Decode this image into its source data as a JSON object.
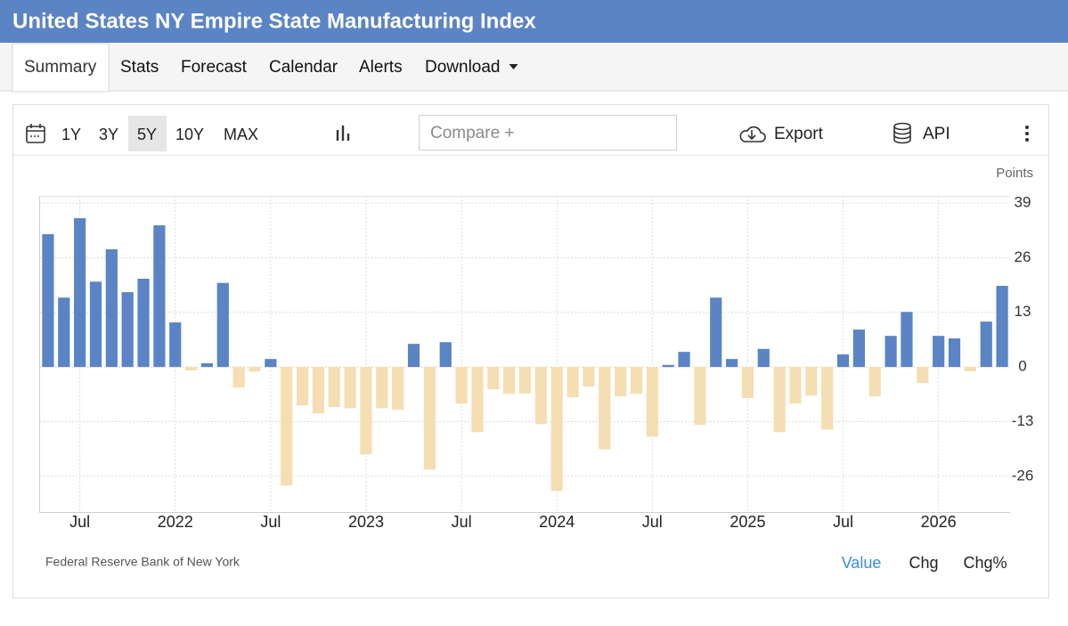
{
  "header": {
    "title": "United States NY Empire State Manufacturing Index"
  },
  "tabs": {
    "items": [
      "Summary",
      "Stats",
      "Forecast",
      "Calendar",
      "Alerts",
      "Download"
    ],
    "active": "Summary"
  },
  "toolbar": {
    "ranges": [
      "1Y",
      "3Y",
      "5Y",
      "10Y",
      "MAX"
    ],
    "active_range": "5Y",
    "compare": "Compare +",
    "export": "Export",
    "api": "API"
  },
  "chart_data": {
    "type": "bar",
    "y_label": "Points",
    "categories": [
      null,
      null,
      "Jul",
      null,
      null,
      null,
      null,
      null,
      "2022",
      null,
      null,
      null,
      null,
      null,
      "Jul",
      null,
      null,
      null,
      null,
      null,
      "2023",
      null,
      null,
      null,
      null,
      null,
      "Jul",
      null,
      null,
      null,
      null,
      null,
      "2024",
      null,
      null,
      null,
      null,
      null,
      "Jul",
      null,
      null,
      null,
      null,
      null,
      "2025",
      null,
      null,
      null,
      null,
      null,
      "Jul",
      null,
      null,
      null,
      null,
      null,
      "2026",
      null,
      null,
      null,
      null
    ],
    "values": [
      31.6,
      16.5,
      35.4,
      20.3,
      28,
      17.8,
      21,
      33.7,
      10.6,
      -0.8,
      0.9,
      20,
      -4.9,
      -1.1,
      1.9,
      -28.2,
      -9.1,
      -11,
      -9.5,
      -9.8,
      -20.8,
      -9.8,
      -10.2,
      5.5,
      -24.4,
      5.9,
      -8.7,
      -15.5,
      -5.3,
      -6.4,
      -6.3,
      -13.6,
      -29.5,
      -7.2,
      -4.7,
      -19.6,
      -7,
      -6.4,
      -16.6,
      0.5,
      3.6,
      -13.8,
      16.5,
      1.9,
      -7.4,
      4.3,
      -15.5,
      -8.7,
      -6.8,
      -14.9,
      3,
      8.9,
      -7,
      7.4,
      13.1,
      -3.8,
      7.4,
      6.8,
      -1,
      10.8,
      19.3
    ],
    "color": "#5b84c4",
    "negative_color": "#f5deb3",
    "ylim": [
      -34.5,
      40.7
    ],
    "yticks": [
      -26,
      -13,
      0,
      13,
      26,
      39
    ],
    "grid": true,
    "source": "Federal Reserve Bank of New York"
  },
  "footer": {
    "views": [
      "Value",
      "Chg",
      "Chg%"
    ],
    "active_view": "Value"
  }
}
